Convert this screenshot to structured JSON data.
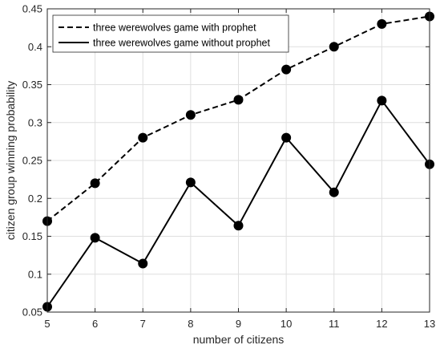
{
  "chart_data": {
    "type": "line",
    "xlabel": "number of citizens",
    "ylabel": "citizen group winning probability",
    "xlim": [
      5,
      13
    ],
    "ylim": [
      0.05,
      0.45
    ],
    "x": [
      5,
      6,
      7,
      8,
      9,
      10,
      11,
      12,
      13
    ],
    "xticks": [
      "5",
      "6",
      "7",
      "8",
      "9",
      "10",
      "11",
      "12",
      "13"
    ],
    "yticks": [
      "0.05",
      "0.1",
      "0.15",
      "0.2",
      "0.25",
      "0.3",
      "0.35",
      "0.4",
      "0.45"
    ],
    "grid": true,
    "legend_position": "top-left",
    "series": [
      {
        "name": "three werewolves game with prophet",
        "style": "dashed",
        "color": "#000000",
        "marker": "filled-circle",
        "values": [
          0.17,
          0.22,
          0.28,
          0.31,
          0.33,
          0.37,
          0.4,
          0.43,
          0.44
        ]
      },
      {
        "name": "three werewolves game without prophet",
        "style": "solid",
        "color": "#000000",
        "marker": "filled-circle",
        "values": [
          0.057,
          0.148,
          0.114,
          0.221,
          0.164,
          0.28,
          0.208,
          0.329,
          0.245
        ]
      }
    ]
  }
}
